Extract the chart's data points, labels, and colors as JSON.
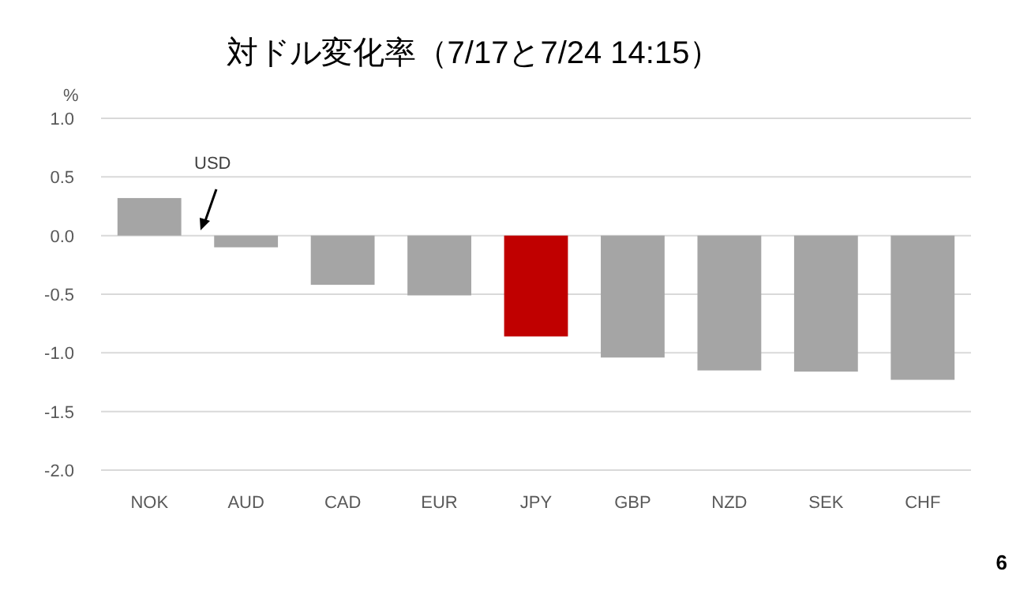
{
  "chart_data": {
    "type": "bar",
    "title": "対ドル変化率（7/17と7/24 14:15）",
    "ylabel": "%",
    "categories": [
      "NOK",
      "AUD",
      "CAD",
      "EUR",
      "JPY",
      "GBP",
      "NZD",
      "SEK",
      "CHF"
    ],
    "values": [
      0.32,
      -0.1,
      -0.42,
      -0.51,
      -0.86,
      -1.04,
      -1.15,
      -1.16,
      -1.23
    ],
    "colors": [
      "#a5a5a5",
      "#a5a5a5",
      "#a5a5a5",
      "#a5a5a5",
      "#c00000",
      "#a5a5a5",
      "#a5a5a5",
      "#a5a5a5",
      "#a5a5a5"
    ],
    "ylim": [
      -2.0,
      1.0
    ],
    "yticks": [
      {
        "value": 1.0,
        "label": "1.0"
      },
      {
        "value": 0.5,
        "label": "0.5"
      },
      {
        "value": 0.0,
        "label": "0.0"
      },
      {
        "value": -0.5,
        "label": "-0.5"
      },
      {
        "value": -1.0,
        "label": "-1.0"
      },
      {
        "value": -1.5,
        "label": "-1.5"
      },
      {
        "value": -2.0,
        "label": "-2.0"
      }
    ],
    "grid": "y",
    "annotations": [
      "USD",
      "6"
    ]
  }
}
